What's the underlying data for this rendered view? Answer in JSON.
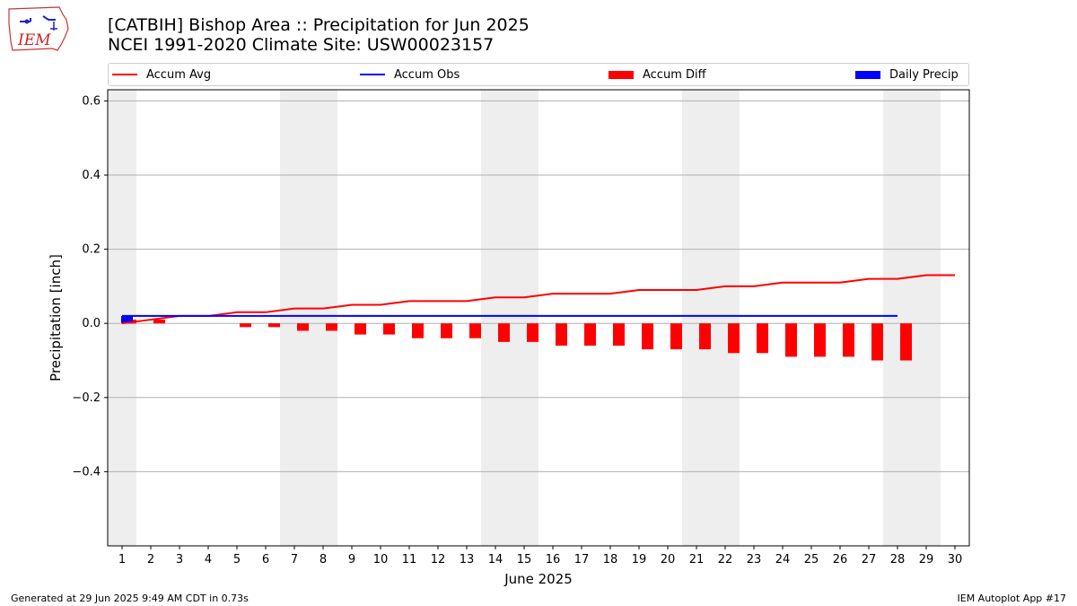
{
  "header": {
    "title_line1": "[CATBIH] Bishop Area :: Precipitation for Jun 2025",
    "title_line2": "NCEI 1991-2020 Climate Site: USW00023157",
    "logo_text": "IEM"
  },
  "footer": {
    "generated": "Generated at 29 Jun 2025 9:49 AM CDT in 0.73s",
    "app": "IEM Autoplot App #17"
  },
  "legend": [
    {
      "label": "Accum Avg",
      "kind": "line",
      "color": "#ff0000"
    },
    {
      "label": "Accum Obs",
      "kind": "line",
      "color": "#0000ff"
    },
    {
      "label": "Accum Diff",
      "kind": "rect",
      "color": "#ff0000"
    },
    {
      "label": "Daily Precip",
      "kind": "rect",
      "color": "#0000ff"
    }
  ],
  "chart_data": {
    "type": "bar",
    "xlabel": "June 2025",
    "ylabel": "Precipitation [inch]",
    "ylim": [
      -0.6,
      0.63
    ],
    "yticks": [
      -0.4,
      -0.2,
      0.0,
      0.2,
      0.4,
      0.6
    ],
    "ytick_labels": [
      "−0.4",
      "−0.2",
      "0.0",
      "0.2",
      "0.4",
      "0.6"
    ],
    "days": [
      1,
      2,
      3,
      4,
      5,
      6,
      7,
      8,
      9,
      10,
      11,
      12,
      13,
      14,
      15,
      16,
      17,
      18,
      19,
      20,
      21,
      22,
      23,
      24,
      25,
      26,
      27,
      28,
      29,
      30
    ],
    "weekend_days": [
      1,
      7,
      8,
      14,
      15,
      21,
      22,
      28,
      29
    ],
    "grid": "horizontal",
    "series": [
      {
        "name": "Accum Avg",
        "type": "line",
        "color": "#ff0000",
        "values": [
          0.0,
          0.01,
          0.02,
          0.02,
          0.03,
          0.03,
          0.04,
          0.04,
          0.05,
          0.05,
          0.06,
          0.06,
          0.06,
          0.07,
          0.07,
          0.08,
          0.08,
          0.08,
          0.09,
          0.09,
          0.09,
          0.1,
          0.1,
          0.11,
          0.11,
          0.11,
          0.12,
          0.12,
          0.13,
          0.13
        ]
      },
      {
        "name": "Accum Obs",
        "type": "line",
        "color": "#0000ff",
        "values": [
          0.02,
          0.02,
          0.02,
          0.02,
          0.02,
          0.02,
          0.02,
          0.02,
          0.02,
          0.02,
          0.02,
          0.02,
          0.02,
          0.02,
          0.02,
          0.02,
          0.02,
          0.02,
          0.02,
          0.02,
          0.02,
          0.02,
          0.02,
          0.02,
          0.02,
          0.02,
          0.02,
          0.02
        ]
      },
      {
        "name": "Accum Diff",
        "type": "bar",
        "color": "#ff0000",
        "values": [
          0.01,
          0.01,
          0.0,
          0.0,
          -0.01,
          -0.01,
          -0.02,
          -0.02,
          -0.03,
          -0.03,
          -0.04,
          -0.04,
          -0.04,
          -0.05,
          -0.05,
          -0.06,
          -0.06,
          -0.06,
          -0.07,
          -0.07,
          -0.07,
          -0.08,
          -0.08,
          -0.09,
          -0.09,
          -0.09,
          -0.1,
          -0.1
        ]
      },
      {
        "name": "Daily Precip",
        "type": "bar",
        "color": "#0000ff",
        "values": [
          0.02,
          0,
          0,
          0,
          0,
          0,
          0,
          0,
          0,
          0,
          0,
          0,
          0,
          0,
          0,
          0,
          0,
          0,
          0,
          0,
          0,
          0,
          0,
          0,
          0,
          0,
          0,
          0
        ]
      }
    ]
  }
}
